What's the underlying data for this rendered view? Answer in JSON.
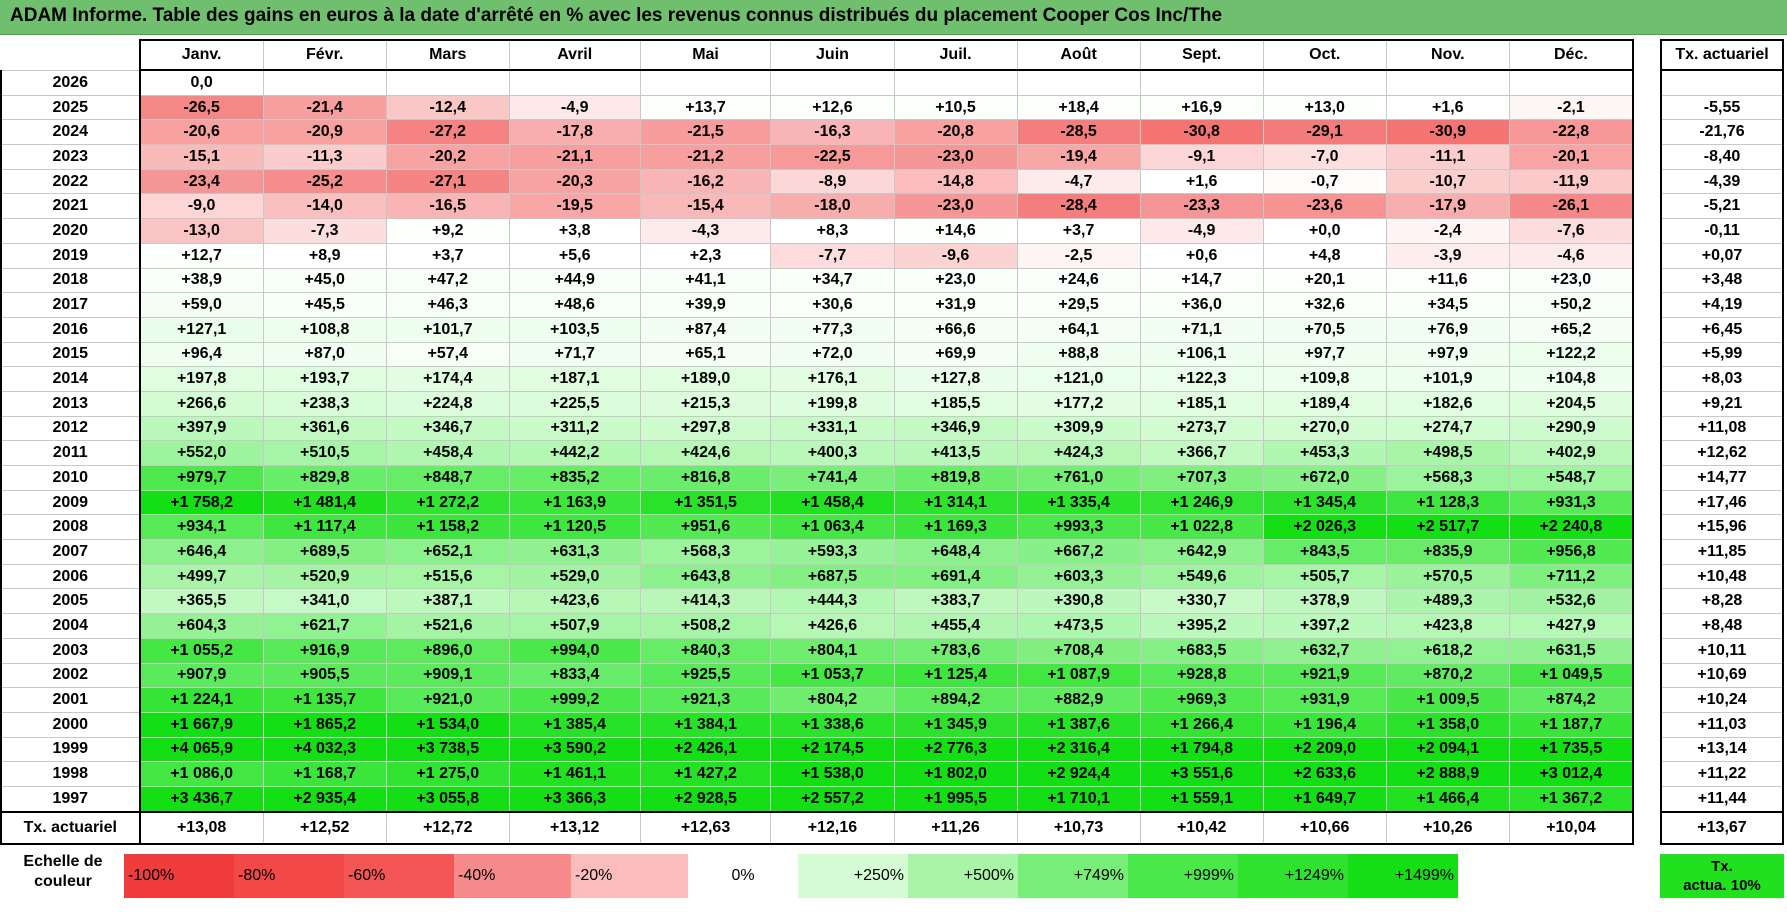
{
  "title": "ADAM Informe. Table des gains en euros à la date d'arrêté en % avec les revenus connus distribués du placement Cooper Cos Inc/The",
  "months": [
    "Janv.",
    "Févr.",
    "Mars",
    "Avril",
    "Mai",
    "Juin",
    "Juil.",
    "Août",
    "Sept.",
    "Oct.",
    "Nov.",
    "Déc."
  ],
  "actuarial_header": "Tx. actuariel",
  "rows": [
    {
      "year": "2026",
      "values": [
        "0,0",
        "",
        "",
        "",
        "",
        "",
        "",
        "",
        "",
        "",
        "",
        ""
      ],
      "act": ""
    },
    {
      "year": "2025",
      "values": [
        "-26,5",
        "-21,4",
        "-12,4",
        "-4,9",
        "+13,7",
        "+12,6",
        "+10,5",
        "+18,4",
        "+16,9",
        "+13,0",
        "+1,6",
        "-2,1"
      ],
      "act": "-5,55"
    },
    {
      "year": "2024",
      "values": [
        "-20,6",
        "-20,9",
        "-27,2",
        "-17,8",
        "-21,5",
        "-16,3",
        "-20,8",
        "-28,5",
        "-30,8",
        "-29,1",
        "-30,9",
        "-22,8"
      ],
      "act": "-21,76"
    },
    {
      "year": "2023",
      "values": [
        "-15,1",
        "-11,3",
        "-20,2",
        "-21,1",
        "-21,2",
        "-22,5",
        "-23,0",
        "-19,4",
        "-9,1",
        "-7,0",
        "-11,1",
        "-20,1"
      ],
      "act": "-8,40"
    },
    {
      "year": "2022",
      "values": [
        "-23,4",
        "-25,2",
        "-27,1",
        "-20,3",
        "-16,2",
        "-8,9",
        "-14,8",
        "-4,7",
        "+1,6",
        "-0,7",
        "-10,7",
        "-11,9"
      ],
      "act": "-4,39"
    },
    {
      "year": "2021",
      "values": [
        "-9,0",
        "-14,0",
        "-16,5",
        "-19,5",
        "-15,4",
        "-18,0",
        "-23,0",
        "-28,4",
        "-23,3",
        "-23,6",
        "-17,9",
        "-26,1"
      ],
      "act": "-5,21"
    },
    {
      "year": "2020",
      "values": [
        "-13,0",
        "-7,3",
        "+9,2",
        "+3,8",
        "-4,3",
        "+8,3",
        "+14,6",
        "+3,7",
        "-4,9",
        "+0,0",
        "-2,4",
        "-7,6"
      ],
      "act": "-0,11"
    },
    {
      "year": "2019",
      "values": [
        "+12,7",
        "+8,9",
        "+3,7",
        "+5,6",
        "+2,3",
        "-7,7",
        "-9,6",
        "-2,5",
        "+0,6",
        "+4,8",
        "-3,9",
        "-4,6"
      ],
      "act": "+0,07"
    },
    {
      "year": "2018",
      "values": [
        "+38,9",
        "+45,0",
        "+47,2",
        "+44,9",
        "+41,1",
        "+34,7",
        "+23,0",
        "+24,6",
        "+14,7",
        "+20,1",
        "+11,6",
        "+23,0"
      ],
      "act": "+3,48"
    },
    {
      "year": "2017",
      "values": [
        "+59,0",
        "+45,5",
        "+46,3",
        "+48,6",
        "+39,9",
        "+30,6",
        "+31,9",
        "+29,5",
        "+36,0",
        "+32,6",
        "+34,5",
        "+50,2"
      ],
      "act": "+4,19"
    },
    {
      "year": "2016",
      "values": [
        "+127,1",
        "+108,8",
        "+101,7",
        "+103,5",
        "+87,4",
        "+77,3",
        "+66,6",
        "+64,1",
        "+71,1",
        "+70,5",
        "+76,9",
        "+65,2"
      ],
      "act": "+6,45"
    },
    {
      "year": "2015",
      "values": [
        "+96,4",
        "+87,0",
        "+57,4",
        "+71,7",
        "+65,1",
        "+72,0",
        "+69,9",
        "+88,8",
        "+106,1",
        "+97,7",
        "+97,9",
        "+122,2"
      ],
      "act": "+5,99"
    },
    {
      "year": "2014",
      "values": [
        "+197,8",
        "+193,7",
        "+174,4",
        "+187,1",
        "+189,0",
        "+176,1",
        "+127,8",
        "+121,0",
        "+122,3",
        "+109,8",
        "+101,9",
        "+104,8"
      ],
      "act": "+8,03"
    },
    {
      "year": "2013",
      "values": [
        "+266,6",
        "+238,3",
        "+224,8",
        "+225,5",
        "+215,3",
        "+199,8",
        "+185,5",
        "+177,2",
        "+185,1",
        "+189,4",
        "+182,6",
        "+204,5"
      ],
      "act": "+9,21"
    },
    {
      "year": "2012",
      "values": [
        "+397,9",
        "+361,6",
        "+346,7",
        "+311,2",
        "+297,8",
        "+331,1",
        "+346,9",
        "+309,9",
        "+273,7",
        "+270,0",
        "+274,7",
        "+290,9"
      ],
      "act": "+11,08"
    },
    {
      "year": "2011",
      "values": [
        "+552,0",
        "+510,5",
        "+458,4",
        "+442,2",
        "+424,6",
        "+400,3",
        "+413,5",
        "+424,3",
        "+366,7",
        "+453,3",
        "+498,5",
        "+402,9"
      ],
      "act": "+12,62"
    },
    {
      "year": "2010",
      "values": [
        "+979,7",
        "+829,8",
        "+848,7",
        "+835,2",
        "+816,8",
        "+741,4",
        "+819,8",
        "+761,0",
        "+707,3",
        "+672,0",
        "+568,3",
        "+548,7"
      ],
      "act": "+14,77"
    },
    {
      "year": "2009",
      "values": [
        "+1 758,2",
        "+1 481,4",
        "+1 272,2",
        "+1 163,9",
        "+1 351,5",
        "+1 458,4",
        "+1 314,1",
        "+1 335,4",
        "+1 246,9",
        "+1 345,4",
        "+1 128,3",
        "+931,3"
      ],
      "act": "+17,46"
    },
    {
      "year": "2008",
      "values": [
        "+934,1",
        "+1 117,4",
        "+1 158,2",
        "+1 120,5",
        "+951,6",
        "+1 063,4",
        "+1 169,3",
        "+993,3",
        "+1 022,8",
        "+2 026,3",
        "+2 517,7",
        "+2 240,8"
      ],
      "act": "+15,96"
    },
    {
      "year": "2007",
      "values": [
        "+646,4",
        "+689,5",
        "+652,1",
        "+631,3",
        "+568,3",
        "+593,3",
        "+648,4",
        "+667,2",
        "+642,9",
        "+843,5",
        "+835,9",
        "+956,8"
      ],
      "act": "+11,85"
    },
    {
      "year": "2006",
      "values": [
        "+499,7",
        "+520,9",
        "+515,6",
        "+529,0",
        "+643,8",
        "+687,5",
        "+691,4",
        "+603,3",
        "+549,6",
        "+505,7",
        "+570,5",
        "+711,2"
      ],
      "act": "+10,48"
    },
    {
      "year": "2005",
      "values": [
        "+365,5",
        "+341,0",
        "+387,1",
        "+423,6",
        "+414,3",
        "+444,3",
        "+383,7",
        "+390,8",
        "+330,7",
        "+378,9",
        "+489,3",
        "+532,6"
      ],
      "act": "+8,28"
    },
    {
      "year": "2004",
      "values": [
        "+604,3",
        "+621,7",
        "+521,6",
        "+507,9",
        "+508,2",
        "+426,6",
        "+455,4",
        "+473,5",
        "+395,2",
        "+397,2",
        "+423,8",
        "+427,9"
      ],
      "act": "+8,48"
    },
    {
      "year": "2003",
      "values": [
        "+1 055,2",
        "+916,9",
        "+896,0",
        "+994,0",
        "+840,3",
        "+804,1",
        "+783,6",
        "+708,4",
        "+683,5",
        "+632,7",
        "+618,2",
        "+631,5"
      ],
      "act": "+10,11"
    },
    {
      "year": "2002",
      "values": [
        "+907,9",
        "+905,5",
        "+909,1",
        "+833,4",
        "+925,5",
        "+1 053,7",
        "+1 125,4",
        "+1 087,9",
        "+928,8",
        "+921,9",
        "+870,2",
        "+1 049,5"
      ],
      "act": "+10,69"
    },
    {
      "year": "2001",
      "values": [
        "+1 224,1",
        "+1 135,7",
        "+921,0",
        "+999,2",
        "+921,3",
        "+804,2",
        "+894,2",
        "+882,9",
        "+969,3",
        "+931,9",
        "+1 009,5",
        "+874,2"
      ],
      "act": "+10,24"
    },
    {
      "year": "2000",
      "values": [
        "+1 667,9",
        "+1 865,2",
        "+1 534,0",
        "+1 385,4",
        "+1 384,1",
        "+1 338,6",
        "+1 345,9",
        "+1 387,6",
        "+1 266,4",
        "+1 196,4",
        "+1 358,0",
        "+1 187,7"
      ],
      "act": "+11,03"
    },
    {
      "year": "1999",
      "values": [
        "+4 065,9",
        "+4 032,3",
        "+3 738,5",
        "+3 590,2",
        "+2 426,1",
        "+2 174,5",
        "+2 776,3",
        "+2 316,4",
        "+1 794,8",
        "+2 209,0",
        "+2 094,1",
        "+1 735,5"
      ],
      "act": "+13,14"
    },
    {
      "year": "1998",
      "values": [
        "+1 086,0",
        "+1 168,7",
        "+1 275,0",
        "+1 461,1",
        "+1 427,2",
        "+1 538,0",
        "+1 802,0",
        "+2 924,4",
        "+3 551,6",
        "+2 633,6",
        "+2 888,9",
        "+3 012,4"
      ],
      "act": "+11,22"
    },
    {
      "year": "1997",
      "values": [
        "+3 436,7",
        "+2 935,4",
        "+3 055,8",
        "+3 366,3",
        "+2 928,5",
        "+2 557,2",
        "+1 995,5",
        "+1 710,1",
        "+1 559,1",
        "+1 649,7",
        "+1 466,4",
        "+1 367,2"
      ],
      "act": "+11,44"
    }
  ],
  "footer": {
    "label": "Tx. actuariel",
    "values": [
      "+13,08",
      "+12,52",
      "+12,72",
      "+13,12",
      "+12,63",
      "+12,16",
      "+11,26",
      "+10,73",
      "+10,42",
      "+10,66",
      "+10,26",
      "+10,04"
    ],
    "act": "+13,67"
  },
  "scale": {
    "label_line1": "Echelle de",
    "label_line2": "couleur",
    "items": [
      {
        "label": "-100%",
        "color": "#f03c3c"
      },
      {
        "label": "-80%",
        "color": "#f24848"
      },
      {
        "label": "-60%",
        "color": "#f45656"
      },
      {
        "label": "-40%",
        "color": "#f78a8a"
      },
      {
        "label": "-20%",
        "color": "#fbbcbc"
      },
      {
        "label": "0%",
        "color": "#ffffff"
      },
      {
        "label": "+250%",
        "color": "#d6fcd6"
      },
      {
        "label": "+500%",
        "color": "#a8f5a8"
      },
      {
        "label": "+749%",
        "color": "#78ee78"
      },
      {
        "label": "+999%",
        "color": "#4ae84a"
      },
      {
        "label": "+1249%",
        "color": "#2ee22e"
      },
      {
        "label": "+1499%",
        "color": "#16de16"
      }
    ],
    "act_line1": "Tx.",
    "act_line2": "actua. 10%",
    "act_color": "#20e020"
  },
  "colors": {
    "title_bg": "#6fbf6f"
  }
}
